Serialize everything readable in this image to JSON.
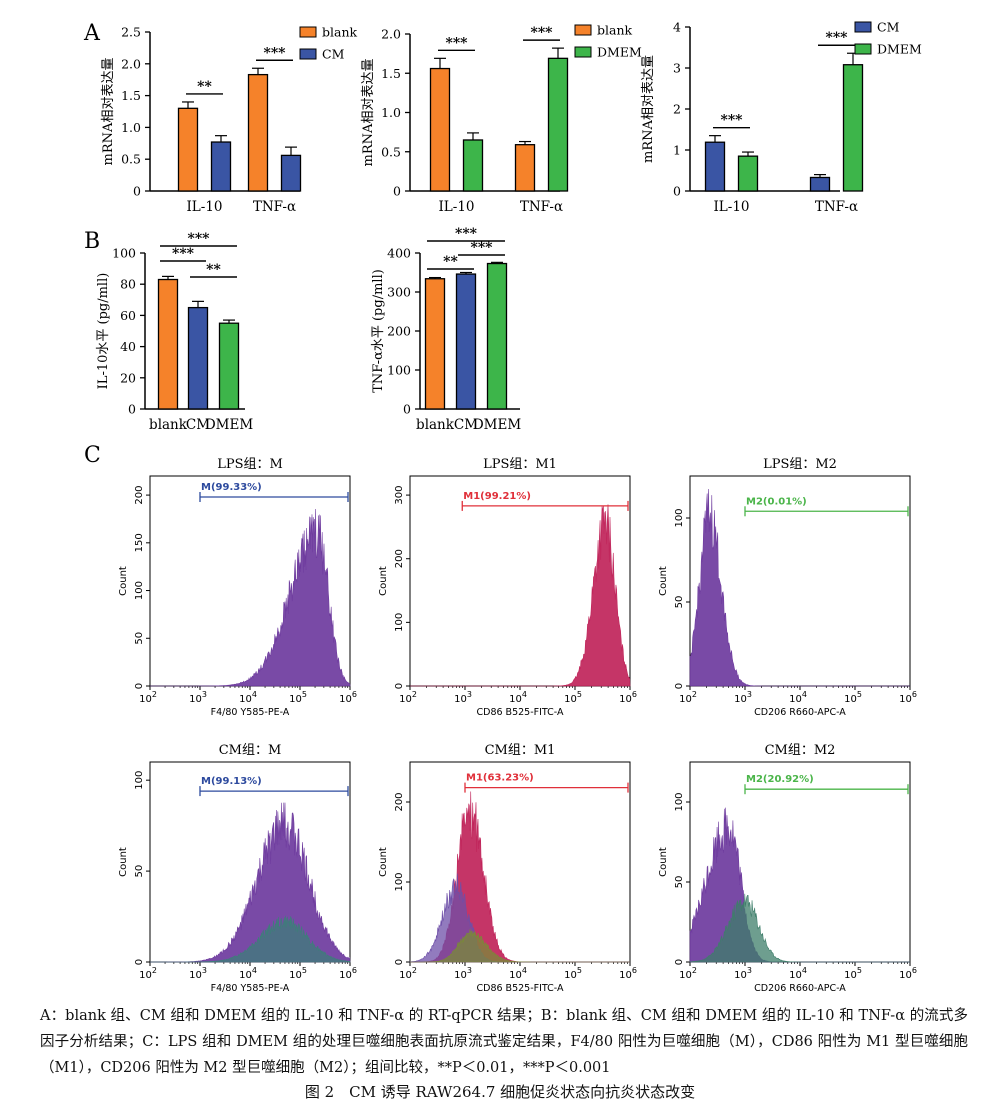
{
  "panel_labels": {
    "A": "A",
    "B": "B",
    "C": "C"
  },
  "colors": {
    "orange": "#F5822A",
    "blue": "#3A55A4",
    "green": "#3DB54A",
    "purple": "#6E3B9E",
    "red": "#E0303A",
    "lightgreen": "#8CD06A",
    "navy": "#2D4A9E"
  },
  "chart_data": [
    {
      "id": "A1",
      "type": "bar",
      "ylabel": "mRNA相对表达量",
      "ylim": [
        0,
        2.5
      ],
      "yticks": [
        "0",
        "0.5",
        "1.0",
        "1.5",
        "2.0",
        "2.5"
      ],
      "categories": [
        "IL-10",
        "TNF-α"
      ],
      "series": [
        {
          "name": "blank",
          "color": "#F5822A",
          "values": [
            1.3,
            1.83
          ],
          "errors": [
            0.1,
            0.1
          ]
        },
        {
          "name": "CM",
          "color": "#3A55A4",
          "values": [
            0.77,
            0.56
          ],
          "errors": [
            0.1,
            0.13
          ]
        }
      ],
      "significance": [
        {
          "label": "**",
          "category": 0
        },
        {
          "label": "***",
          "category": 1
        }
      ]
    },
    {
      "id": "A2",
      "type": "bar",
      "ylabel": "mRNA相对表达量",
      "ylim": [
        0,
        2.0
      ],
      "yticks": [
        "0",
        "0.5",
        "1.0",
        "1.5",
        "2.0"
      ],
      "categories": [
        "IL-10",
        "TNF-α"
      ],
      "series": [
        {
          "name": "blank",
          "color": "#F5822A",
          "values": [
            1.56,
            0.59
          ],
          "errors": [
            0.13,
            0.04
          ]
        },
        {
          "name": "DMEM",
          "color": "#3DB54A",
          "values": [
            0.65,
            1.69
          ],
          "errors": [
            0.09,
            0.13
          ]
        }
      ],
      "significance": [
        {
          "label": "***",
          "category": 0
        },
        {
          "label": "***",
          "category": 1
        }
      ]
    },
    {
      "id": "A3",
      "type": "bar",
      "ylabel": "mRNA相对表达量",
      "ylim": [
        0,
        4
      ],
      "yticks": [
        "0",
        "1",
        "2",
        "3",
        "4"
      ],
      "categories": [
        "IL-10",
        "TNF-α"
      ],
      "series": [
        {
          "name": "CM",
          "color": "#3A55A4",
          "values": [
            1.19,
            0.33
          ],
          "errors": [
            0.16,
            0.07
          ]
        },
        {
          "name": "DMEM",
          "color": "#3DB54A",
          "values": [
            0.85,
            3.08
          ],
          "errors": [
            0.1,
            0.28
          ]
        }
      ],
      "significance": [
        {
          "label": "***",
          "category": 0
        },
        {
          "label": "***",
          "category": 1
        }
      ]
    },
    {
      "id": "B1",
      "type": "bar",
      "ylabel": "IL-10水平 (pg/mll)",
      "ylim": [
        0,
        100
      ],
      "yticks": [
        "0",
        "20",
        "40",
        "60",
        "80",
        "100"
      ],
      "categories": [
        "blank",
        "CM",
        "DMEM"
      ],
      "colors": [
        "#F5822A",
        "#3A55A4",
        "#3DB54A"
      ],
      "values": [
        83,
        65,
        55
      ],
      "errors": [
        2,
        4,
        2
      ],
      "significance": [
        {
          "label": "***",
          "from": 0,
          "to": 2
        },
        {
          "label": "***",
          "from": 0,
          "to": 1
        },
        {
          "label": "**",
          "from": 1,
          "to": 2
        }
      ]
    },
    {
      "id": "B2",
      "type": "bar",
      "ylabel": "TNF-α水平 (pg/mll)",
      "ylim": [
        0,
        400
      ],
      "yticks": [
        "0",
        "100",
        "200",
        "300",
        "400"
      ],
      "categories": [
        "blank",
        "CM",
        "DMEM"
      ],
      "colors": [
        "#F5822A",
        "#3A55A4",
        "#3DB54A"
      ],
      "values": [
        334,
        346,
        373
      ],
      "errors": [
        3,
        4,
        3
      ],
      "significance": [
        {
          "label": "***",
          "from": 0,
          "to": 2
        },
        {
          "label": "**",
          "from": 0,
          "to": 1
        },
        {
          "label": "***",
          "from": 1,
          "to": 2
        }
      ]
    },
    {
      "id": "C1",
      "type": "area",
      "title": "LPS组：M",
      "xlabel": "F4/80 Y585-PE-A",
      "ylabel": "Count",
      "ymax": 220,
      "yticks": [
        0,
        50,
        100,
        150,
        200
      ],
      "gate": {
        "label": "M(99.33%)",
        "from": 3,
        "to": 6,
        "y": 198,
        "color": "#2D4A9E"
      },
      "series": [
        {
          "color": "#6E3B9E",
          "peak": 5.35,
          "height": 160,
          "left_width": 0.55,
          "right_width": 0.22
        }
      ]
    },
    {
      "id": "C2",
      "type": "area",
      "title": "LPS组：M1",
      "xlabel": "CD86 B525-FITC-A",
      "ylabel": "Count",
      "ymax": 330,
      "yticks": [
        0,
        100,
        200,
        300
      ],
      "gate": {
        "label": "M1(99.21%)",
        "from": 2.95,
        "to": 6,
        "y": 283,
        "color": "#E0303A"
      },
      "series": [
        {
          "color": "#C0245A",
          "peak": 5.55,
          "height": 255,
          "left_width": 0.22,
          "right_width": 0.18
        }
      ]
    },
    {
      "id": "C3",
      "type": "area",
      "title": "LPS组：M2",
      "xlabel": "CD206 R660-APC-A",
      "ylabel": "Count",
      "ymax": 125,
      "yticks": [
        0,
        50,
        100
      ],
      "gate": {
        "label": "M2(0.01%)",
        "from": 3,
        "to": 6,
        "y": 104,
        "color": "#4BB54A"
      },
      "series": [
        {
          "color": "#6E3B9E",
          "peak": 2.35,
          "height": 100,
          "left_width": 0.18,
          "right_width": 0.22
        }
      ]
    },
    {
      "id": "C4",
      "type": "area",
      "title": "CM组：M",
      "xlabel": "F4/80 Y585-PE-A",
      "ylabel": "Count",
      "ymax": 110,
      "yticks": [
        0,
        50,
        100
      ],
      "gate": {
        "label": "M(99.13%)",
        "from": 3,
        "to": 6,
        "y": 94,
        "color": "#2D4A9E"
      },
      "series": [
        {
          "color": "#6E3B9E",
          "peak": 4.7,
          "height": 75,
          "left_width": 0.55,
          "right_width": 0.48
        },
        {
          "color": "#3E7E7A",
          "peak": 4.7,
          "height": 22,
          "left_width": 0.5,
          "right_width": 0.45
        }
      ]
    },
    {
      "id": "C5",
      "type": "area",
      "title": "CM组：M1",
      "xlabel": "CD86 B525-FITC-A",
      "ylabel": "Count",
      "ymax": 250,
      "yticks": [
        0,
        100,
        200
      ],
      "gate": {
        "label": "M1(63.23%)",
        "from": 3,
        "to": 6,
        "y": 218,
        "color": "#E0303A"
      },
      "series": [
        {
          "color": "#C0245A",
          "peak": 3.08,
          "height": 190,
          "left_width": 0.22,
          "right_width": 0.25
        },
        {
          "color": "#6E4FA8",
          "peak": 2.85,
          "height": 95,
          "left_width": 0.25,
          "right_width": 0.22
        },
        {
          "color": "#7A8A38",
          "peak": 3.1,
          "height": 35,
          "left_width": 0.22,
          "right_width": 0.28
        }
      ]
    },
    {
      "id": "C6",
      "type": "area",
      "title": "CM组：M2",
      "xlabel": "CD206 R660-APC-A",
      "ylabel": "Count",
      "ymax": 125,
      "yticks": [
        0,
        50,
        100
      ],
      "gate": {
        "label": "M2(20.92%)",
        "from": 3,
        "to": 6,
        "y": 108,
        "color": "#4BB54A"
      },
      "series": [
        {
          "color": "#6E3B9E",
          "peak": 2.7,
          "height": 85,
          "left_width": 0.4,
          "right_width": 0.22
        },
        {
          "color": "#3E7E6A",
          "peak": 3.0,
          "height": 38,
          "left_width": 0.3,
          "right_width": 0.25
        }
      ]
    }
  ],
  "flow_x_ticks": [
    "2",
    "3",
    "4",
    "5",
    "6"
  ],
  "caption": "A：blank 组、CM 组和 DMEM 组的 IL-10 和 TNF-α 的 RT-qPCR 结果；B：blank 组、CM 组和 DMEM 组的 IL-10 和 TNF-α 的流式多因子分析结果；C：LPS 组和 DMEM 组的处理巨噬细胞表面抗原流式鉴定结果，F4/80 阳性为巨噬细胞（M），CD86 阳性为 M1 型巨噬细胞（M1），CD206 阳性为 M2 型巨噬细胞（M2）；组间比较，**P＜0.01，***P＜0.001",
  "figure_title": "图 2　CM 诱导 RAW264.7 细胞促炎状态向抗炎状态改变"
}
